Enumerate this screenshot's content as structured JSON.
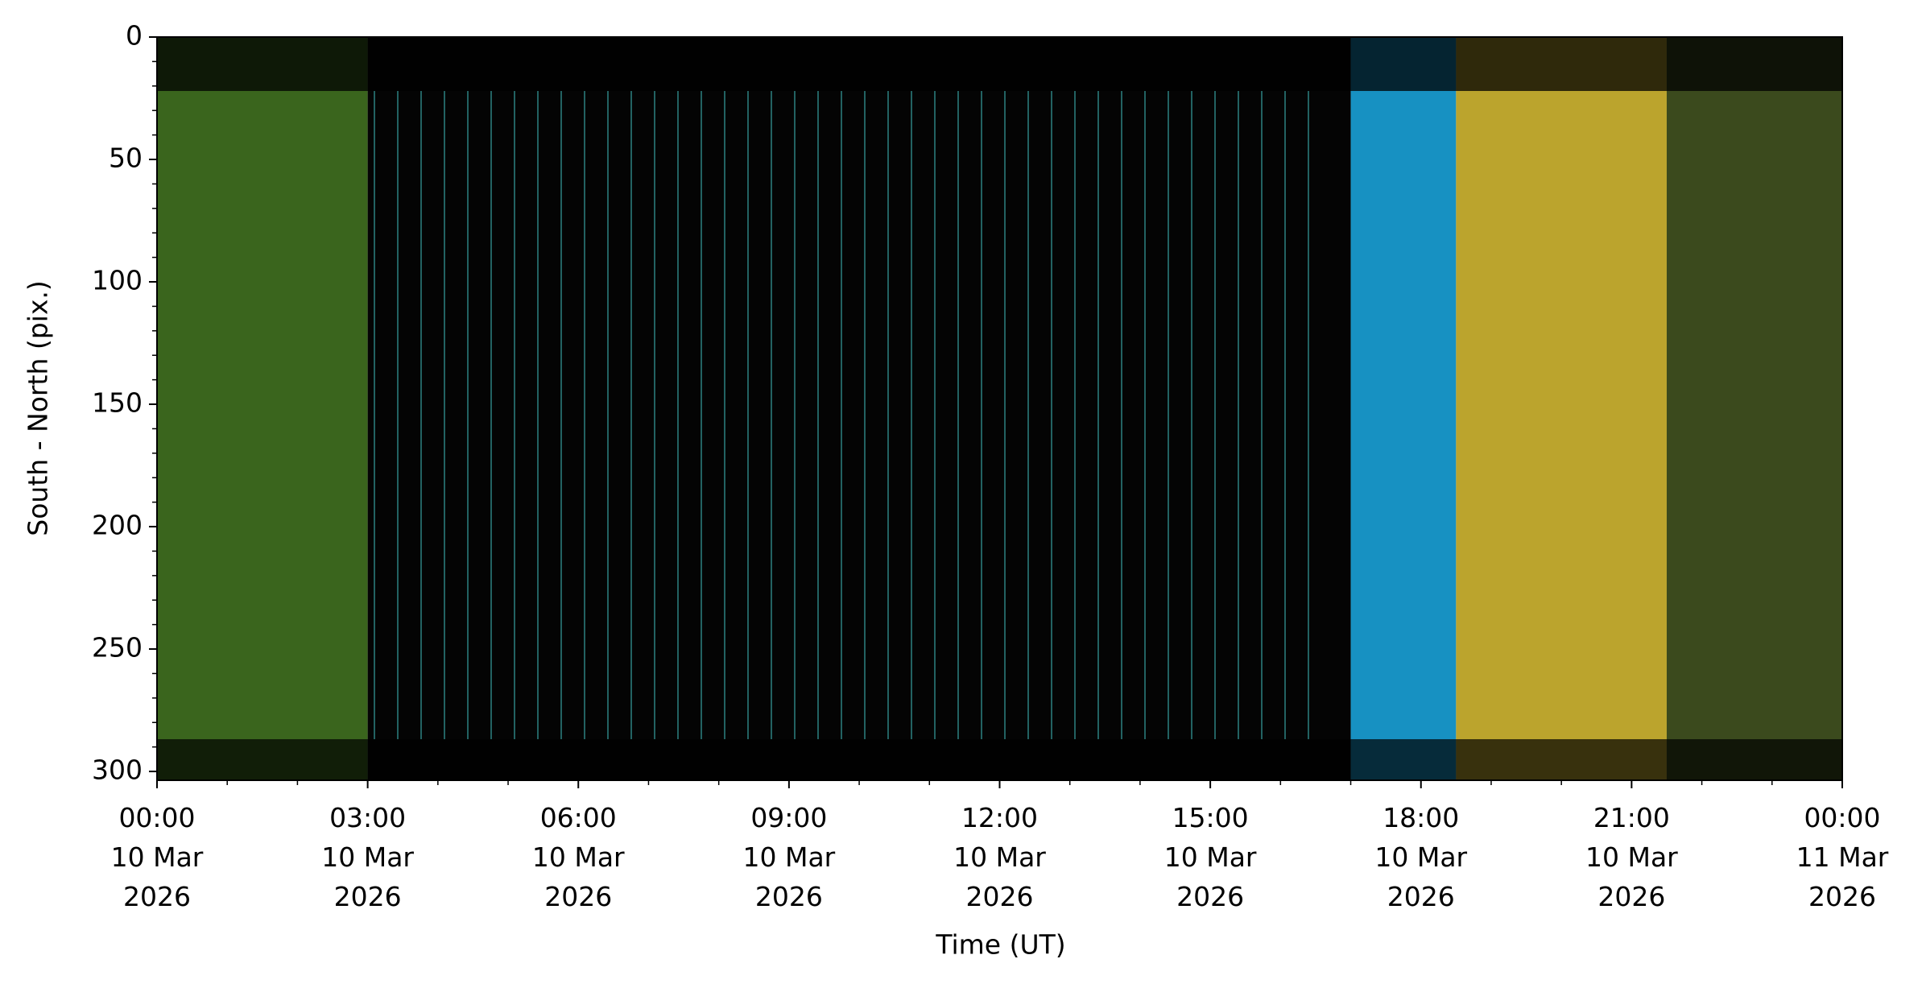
{
  "chart_data": {
    "type": "keogram",
    "xlabel": "Time (UT)",
    "ylabel": "South - North (pix.)",
    "xlim": [
      "2026-03-10T00:00",
      "2026-03-11T00:00"
    ],
    "ylim": [
      303.6,
      0
    ],
    "xticks": [
      {
        "value": "2026-03-10T00:00",
        "label": "00:00\n10 Mar\n2026"
      },
      {
        "value": "2026-03-10T03:00",
        "label": "03:00\n10 Mar\n2026"
      },
      {
        "value": "2026-03-10T06:00",
        "label": "06:00\n10 Mar\n2026"
      },
      {
        "value": "2026-03-10T09:00",
        "label": "09:00\n10 Mar\n2026"
      },
      {
        "value": "2026-03-10T12:00",
        "label": "12:00\n10 Mar\n2026"
      },
      {
        "value": "2026-03-10T15:00",
        "label": "15:00\n10 Mar\n2026"
      },
      {
        "value": "2026-03-10T18:00",
        "label": "18:00\n10 Mar\n2026"
      },
      {
        "value": "2026-03-10T21:00",
        "label": "21:00\n10 Mar\n2026"
      },
      {
        "value": "2026-03-11T00:00",
        "label": "00:00\n11 Mar\n2026"
      }
    ],
    "yticks": [
      0,
      50,
      100,
      150,
      200,
      250,
      300
    ],
    "yminorticks": [
      10,
      20,
      30,
      40,
      60,
      70,
      80,
      90,
      110,
      120,
      130,
      140,
      160,
      170,
      180,
      190,
      210,
      220,
      230,
      240,
      260,
      270,
      280,
      290
    ],
    "image_segments": [
      {
        "start": "2026-03-10T00:00",
        "end": "2026-03-10T03:00",
        "color": "#3a651d"
      },
      {
        "start": "2026-03-10T03:00",
        "end": "2026-03-10T17:00",
        "color": "#040404"
      },
      {
        "start": "2026-03-10T17:00",
        "end": "2026-03-10T18:30",
        "color": "#1791c2"
      },
      {
        "start": "2026-03-10T18:30",
        "end": "2026-03-10T21:30",
        "color": "#bba42d"
      },
      {
        "start": "2026-03-10T21:30",
        "end": "2026-03-11T00:00",
        "color": "#3b4a1d"
      }
    ]
  }
}
